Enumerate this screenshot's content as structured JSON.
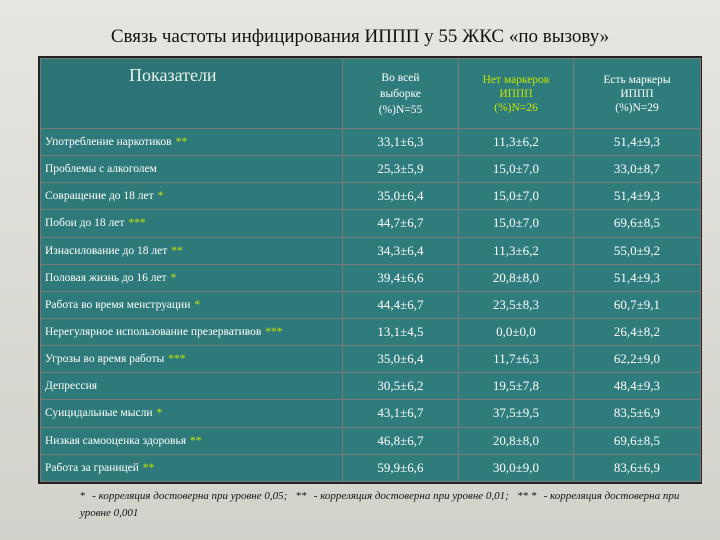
{
  "title": "Связь частоты инфицирования ИППП у 55 ЖКС «по вызову»",
  "headers": {
    "indicator": "Показатели",
    "total": [
      "Во всей",
      "выборке",
      "(%)N=55"
    ],
    "no_markers": [
      "Нет маркеров",
      "ИППП",
      "(%)N=26"
    ],
    "has_markers": [
      "Есть маркеры",
      "ИППП",
      "(%)N=29"
    ]
  },
  "rows": [
    {
      "label": "Употребление наркотиков",
      "stars": "**",
      "total": "33,1±6,3",
      "no": "11,3±6,2",
      "yes": "51,4±9,3"
    },
    {
      "label": "Проблемы с алкоголем",
      "stars": "",
      "total": "25,3±5,9",
      "no": "15,0±7,0",
      "yes": "33,0±8,7"
    },
    {
      "label": "Совращение до 18 лет",
      "stars": "*",
      "total": "35,0±6,4",
      "no": "15,0±7,0",
      "yes": "51,4±9,3"
    },
    {
      "label": "Побои до 18 лет",
      "stars": "***",
      "total": "44,7±6,7",
      "no": "15,0±7,0",
      "yes": "69,6±8,5"
    },
    {
      "label": "Изнасилование до 18 лет",
      "stars": "**",
      "total": "34,3±6,4",
      "no": "11,3±6,2",
      "yes": "55,0±9,2"
    },
    {
      "label": "Половая жизнь до 16 лет",
      "stars": "*",
      "total": "39,4±6,6",
      "no": "20,8±8,0",
      "yes": "51,4±9,3"
    },
    {
      "label": "Работа во время менструации",
      "stars": "*",
      "total": "44,4±6,7",
      "no": "23,5±8,3",
      "yes": "60,7±9,1"
    },
    {
      "label": "Нерегулярное использование презервативов",
      "stars": "***",
      "total": "13,1±4,5",
      "no": "0,0±0,0",
      "yes": "26,4±8,2"
    },
    {
      "label": "Угрозы во время работы",
      "stars": "***",
      "total": "35,0±6,4",
      "no": "11,7±6,3",
      "yes": "62,2±9,0"
    },
    {
      "label": "Депрессия",
      "stars": "",
      "total": "30,5±6,2",
      "no": "19,5±7,8",
      "yes": "48,4±9,3"
    },
    {
      "label": "Суицидальные мысли",
      "stars": "*",
      "total": "43,1±6,7",
      "no": "37,5±9,5",
      "yes": "83,5±6,9"
    },
    {
      "label": "Низкая самооценка здоровья",
      "stars": "**",
      "total": "46,8±6,7",
      "no": "20,8±8,0",
      "yes": "69,6±8,5"
    },
    {
      "label": "Работа за границей",
      "stars": "**",
      "total": "59,9±6,6",
      "no": "30,0±9,0",
      "yes": "83,6±6,9"
    }
  ],
  "footnote": {
    "s1": "*",
    "t1": "- корреляция достоверна при уровне 0,05;",
    "s2": "**",
    "t2": "- корреляция достоверна при уровне 0,01;",
    "s3": "** *",
    "t3": "- корреляция достоверна при уровне 0,001"
  }
}
